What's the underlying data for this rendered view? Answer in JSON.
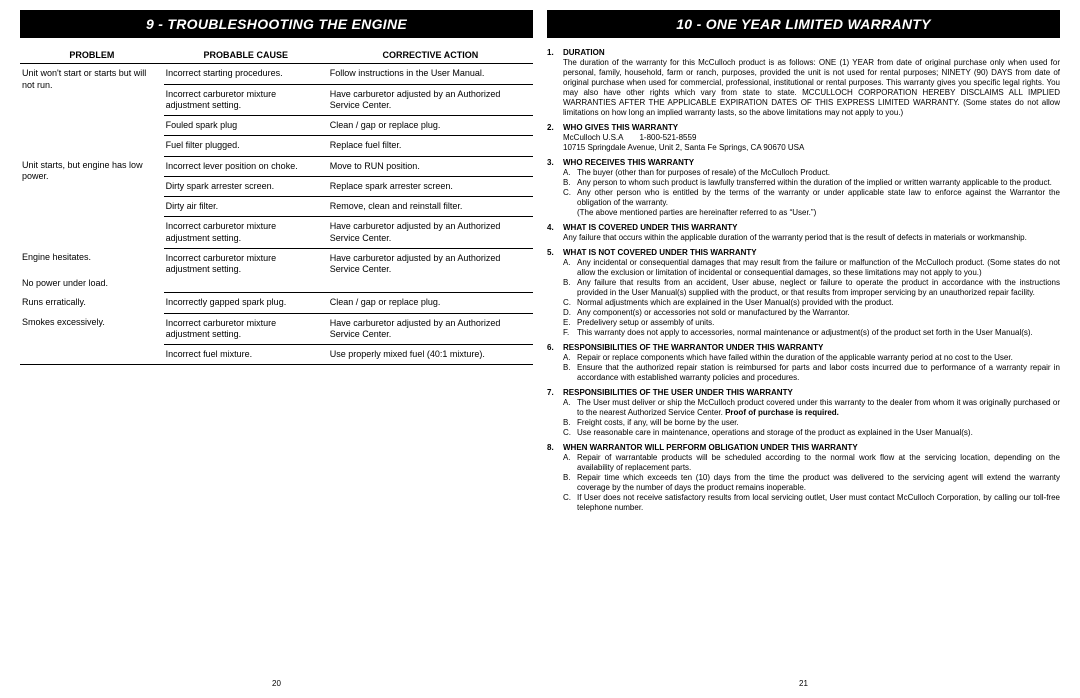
{
  "leftHeader": "9 - TROUBLESHOOTING THE ENGINE",
  "rightHeader": "10 - ONE YEAR LIMITED WARRANTY",
  "leftPageNum": "20",
  "rightPageNum": "21",
  "tableHeaders": {
    "c1": "PROBLEM",
    "c2": "PROBABLE CAUSE",
    "c3": "CORRECTIVE ACTION"
  },
  "troubleGroups": [
    {
      "problem": "Unit won't start or starts but will not run.",
      "rows": [
        {
          "cause": "Incorrect starting procedures.",
          "action": "Follow instructions in the User Manual."
        },
        {
          "cause": "Incorrect carburetor mixture adjustment setting.",
          "action": "Have carburetor adjusted by an Authorized Service Center."
        },
        {
          "cause": "Fouled spark plug",
          "action": "Clean / gap or replace plug."
        },
        {
          "cause": "Fuel filter plugged.",
          "action": "Replace fuel filter."
        }
      ]
    },
    {
      "problem": "Unit starts, but engine has low power.",
      "rows": [
        {
          "cause": "Incorrect lever position on choke.",
          "action": "Move to RUN position."
        },
        {
          "cause": "Dirty spark arrester screen.",
          "action": "Replace spark arrester screen."
        },
        {
          "cause": "Dirty air filter.",
          "action": "Remove, clean and reinstall filter."
        },
        {
          "cause": "Incorrect carburetor mixture adjustment setting.",
          "action": "Have carburetor adjusted by an Authorized Service Center."
        }
      ]
    },
    {
      "problem": "Engine hesitates.",
      "problem2": "No power under load.",
      "rows": [
        {
          "cause": "Incorrect carburetor mixture adjustment setting.",
          "action": "Have carburetor adjusted by an Authorized Service Center."
        }
      ]
    },
    {
      "problem": "Runs erratically.",
      "rows": [
        {
          "cause": "Incorrectly gapped spark plug.",
          "action": "Clean / gap or replace plug."
        }
      ]
    },
    {
      "problem": "Smokes excessively.",
      "rows": [
        {
          "cause": "Incorrect carburetor mixture adjustment setting.",
          "action": "Have carburetor adjusted by an Authorized Service Center."
        },
        {
          "cause": "Incorrect fuel mixture.",
          "action": "Use properly mixed fuel (40:1 mixture)."
        }
      ]
    }
  ],
  "warranty": [
    {
      "num": "1.",
      "title": "DURATION",
      "body": "The duration of the warranty for this McCulloch product is as follows: ONE (1) YEAR from date of original purchase only when used for personal, family, household, farm or ranch, purposes, provided the unit is not used for rental purposes; NINETY (90) DAYS from date of original purchase when used for commercial, professional, institutional or rental purposes. This warranty gives you specific legal rights. You may also have other rights which vary from state to state. MCCULLOCH CORPORATION HEREBY DISCLAIMS ALL IMPLIED WARRANTIES AFTER THE APPLICABLE EXPIRATION DATES OF THIS EXPRESS LIMITED WARRANTY. (Some states do not allow limitations on how long an implied warranty lasts, so the above limitations may not apply to you.)"
    },
    {
      "num": "2.",
      "title": "WHO GIVES THIS WARRANTY",
      "body": "McCulloch U.S.A  1-800-521-8559",
      "body2": "10715 Springdale Avenue, Unit 2, Santa Fe Springs, CA  90670 USA"
    },
    {
      "num": "3.",
      "title": "WHO RECEIVES THIS WARRANTY",
      "sub": [
        {
          "l": "A.",
          "t": "The buyer (other than for purposes of resale) of the McCulloch Product."
        },
        {
          "l": "B.",
          "t": "Any person to whom such product is lawfully transferred within the duration of the implied or written warranty applicable to the product."
        },
        {
          "l": "C.",
          "t": "Any other person who is entitled by the terms of the warranty or under applicable state law to enforce against the Warrantor the obligation of the warranty."
        }
      ],
      "note": "(The above mentioned parties are hereinafter referred to as “User.”)"
    },
    {
      "num": "4.",
      "title": "WHAT IS COVERED UNDER THIS WARRANTY",
      "body": "Any failure that occurs within the applicable duration of the warranty period that is the result of defects in materials or workmanship."
    },
    {
      "num": "5.",
      "title": "WHAT IS NOT COVERED UNDER THIS WARRANTY",
      "sub": [
        {
          "l": "A.",
          "t": "Any incidental or consequential damages that may result from the failure or malfunction of the McCulloch product. (Some states do not allow the exclusion or limitation of incidental or consequential damages, so these limitations may not apply to you.)"
        },
        {
          "l": "B.",
          "t": "Any failure that results from an accident, User abuse, neglect or failure to operate the product in accordance with the instructions provided in the User Manual(s) supplied with the product, or that results from improper servicing by an unauthorized repair facility."
        },
        {
          "l": "C.",
          "t": "Normal adjustments which are explained in the User Manual(s) provided with the product."
        },
        {
          "l": "D.",
          "t": "Any component(s) or accessories not sold or manufactured by the Warrantor."
        },
        {
          "l": "E.",
          "t": "Predelivery setup or assembly of units."
        },
        {
          "l": "F.",
          "t": "This warranty does not apply to accessories, normal maintenance or adjustment(s) of the product set forth in the User Manual(s)."
        }
      ]
    },
    {
      "num": "6.",
      "title": "RESPONSIBILITIES OF THE WARRANTOR UNDER THIS WARRANTY",
      "sub": [
        {
          "l": "A.",
          "t": "Repair or replace components which have failed within the duration of the applicable warranty period at no cost to the User."
        },
        {
          "l": "B.",
          "t": "Ensure that the authorized repair station is reimbursed for parts and labor costs incurred due to performance of a warranty repair in accordance with established warranty policies and procedures."
        }
      ]
    },
    {
      "num": "7.",
      "title": "RESPONSIBILITIES OF THE USER UNDER THIS WARRANTY",
      "sub": [
        {
          "l": "A.",
          "t": "The User must deliver or ship the McCulloch product covered under this warranty to the dealer from whom it was originally purchased or to the nearest Authorized Service Center. ",
          "bold": "Proof of purchase is required."
        },
        {
          "l": "B.",
          "t": "Freight costs, if any, will be borne by the user."
        },
        {
          "l": "C.",
          "t": "Use reasonable care in maintenance, operations and storage of the product as explained in the User Manual(s)."
        }
      ]
    },
    {
      "num": "8.",
      "title": "WHEN WARRANTOR WILL PERFORM OBLIGATION UNDER THIS WARRANTY",
      "sub": [
        {
          "l": "A.",
          "t": "Repair of warrantable products will be scheduled according to the normal work flow at the servicing location, depending on the availability of replacement parts."
        },
        {
          "l": "B.",
          "t": "Repair time which exceeds ten (10) days from the time the product was delivered to the servicing agent will extend the warranty coverage by the number of days the product remains inoperable."
        },
        {
          "l": "C.",
          "t": "If User does not receive satisfactory results from local servicing outlet, User must contact McCulloch Corporation, by calling our toll-free telephone number."
        }
      ]
    }
  ]
}
